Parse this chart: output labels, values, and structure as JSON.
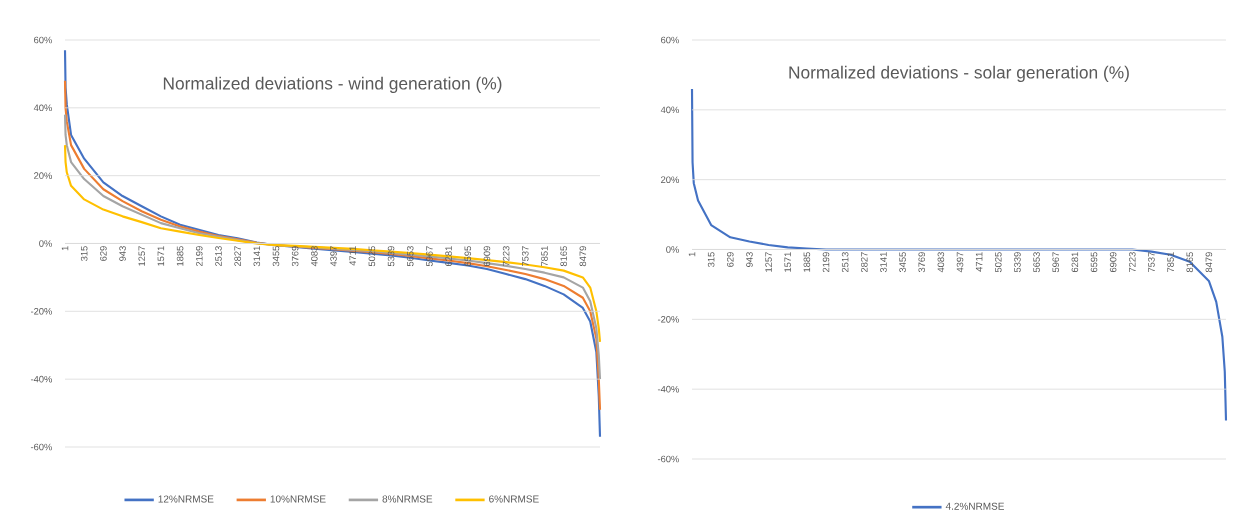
{
  "chart_data": [
    {
      "type": "line",
      "title": "Normalized deviations - wind generation (%)",
      "x": [
        1,
        10,
        30,
        100,
        315,
        629,
        943,
        1257,
        1571,
        1885,
        2199,
        2513,
        2827,
        3141,
        3455,
        3769,
        4083,
        4397,
        4711,
        5025,
        5339,
        5653,
        5967,
        6281,
        6595,
        6909,
        7223,
        7537,
        7851,
        8165,
        8479,
        8600,
        8700,
        8740,
        8760
      ],
      "series": [
        {
          "name": "12%NRMSE",
          "color": "#4472c4",
          "values": [
            57,
            46,
            41,
            32,
            25,
            18,
            14,
            11,
            8,
            5.5,
            4,
            2.5,
            1.5,
            0.3,
            -0.5,
            -1,
            -1.5,
            -2,
            -2.5,
            -3,
            -3.5,
            -4.2,
            -5,
            -5.7,
            -6.5,
            -7.5,
            -9,
            -10.5,
            -12.5,
            -15,
            -19,
            -23,
            -32,
            -45,
            -57
          ]
        },
        {
          "name": "10%NRMSE",
          "color": "#ed7d31",
          "values": [
            48,
            40,
            36,
            29,
            22,
            16,
            12.5,
            9.5,
            7,
            5,
            3.5,
            2.2,
            1.2,
            0.2,
            -0.5,
            -0.9,
            -1.3,
            -1.7,
            -2.1,
            -2.6,
            -3.1,
            -3.7,
            -4.4,
            -5,
            -5.8,
            -6.7,
            -7.8,
            -9,
            -10.5,
            -12.5,
            -16,
            -20,
            -28,
            -40,
            -49
          ]
        },
        {
          "name": "8%NRMSE",
          "color": "#a5a5a5",
          "values": [
            38,
            32,
            29,
            24,
            19,
            14,
            11,
            8.5,
            6,
            4.5,
            3,
            2,
            1,
            0.1,
            -0.5,
            -0.8,
            -1.1,
            -1.5,
            -1.9,
            -2.3,
            -2.8,
            -3.3,
            -3.8,
            -4.4,
            -5,
            -5.8,
            -6.6,
            -7.5,
            -8.6,
            -10,
            -13,
            -17,
            -25,
            -33,
            -40
          ]
        },
        {
          "name": "6%NRMSE",
          "color": "#ffc000",
          "values": [
            29,
            24,
            21,
            17,
            13,
            10,
            8,
            6.3,
            4.5,
            3.5,
            2.5,
            1.6,
            0.8,
            0,
            -0.5,
            -0.7,
            -1,
            -1.3,
            -1.6,
            -2,
            -2.4,
            -2.8,
            -3.3,
            -3.8,
            -4.3,
            -4.9,
            -5.5,
            -6.2,
            -7,
            -8,
            -10,
            -13,
            -20,
            -25,
            -29
          ]
        }
      ],
      "xlim": [
        1,
        8760
      ],
      "xticks": [
        1,
        315,
        629,
        943,
        1257,
        1571,
        1885,
        2199,
        2513,
        2827,
        3141,
        3455,
        3769,
        4083,
        4397,
        4711,
        5025,
        5339,
        5653,
        5967,
        6281,
        6595,
        6909,
        7223,
        7537,
        7851,
        8165,
        8479
      ],
      "ylim": [
        -60,
        60
      ],
      "yticks": [
        {
          "value": -60,
          "label": "-60%"
        },
        {
          "value": -40,
          "label": "-40%"
        },
        {
          "value": -20,
          "label": "-20%"
        },
        {
          "value": 0,
          "label": "0%"
        },
        {
          "value": 20,
          "label": "20%"
        },
        {
          "value": 40,
          "label": "40%"
        },
        {
          "value": 60,
          "label": "60%"
        }
      ],
      "grid": "y",
      "legend": "bottom"
    },
    {
      "type": "line",
      "title": "Normalized deviations - solar generation (%)",
      "x": [
        1,
        10,
        30,
        100,
        315,
        629,
        943,
        1257,
        1571,
        1885,
        2199,
        2513,
        2827,
        3141,
        3455,
        3769,
        4083,
        4397,
        4711,
        5025,
        5339,
        5653,
        5967,
        6281,
        6595,
        6909,
        7223,
        7537,
        7851,
        8165,
        8479,
        8600,
        8700,
        8740,
        8760
      ],
      "series": [
        {
          "name": "4.2%NRMSE",
          "color": "#4472c4",
          "values": [
            46,
            25,
            19,
            14,
            7,
            3.5,
            2.3,
            1.3,
            0.6,
            0.3,
            0,
            0,
            0,
            0,
            0,
            0,
            0,
            0,
            0,
            0,
            0,
            0,
            0,
            0,
            0,
            0,
            0,
            -0.6,
            -1.5,
            -3.5,
            -9,
            -15,
            -25,
            -35,
            -49
          ]
        }
      ],
      "xlim": [
        1,
        8760
      ],
      "xticks": [
        1,
        315,
        629,
        943,
        1257,
        1571,
        1885,
        2199,
        2513,
        2827,
        3141,
        3455,
        3769,
        4083,
        4397,
        4711,
        5025,
        5339,
        5653,
        5967,
        6281,
        6595,
        6909,
        7223,
        7537,
        7851,
        8165,
        8479
      ],
      "ylim": [
        -60,
        60
      ],
      "yticks": [
        {
          "value": -60,
          "label": "-60%"
        },
        {
          "value": -40,
          "label": "-40%"
        },
        {
          "value": -20,
          "label": "-20%"
        },
        {
          "value": 0,
          "label": "0%"
        },
        {
          "value": 20,
          "label": "20%"
        },
        {
          "value": 40,
          "label": "40%"
        },
        {
          "value": 60,
          "label": "60%"
        }
      ],
      "grid": "y",
      "legend": "bottom"
    }
  ]
}
